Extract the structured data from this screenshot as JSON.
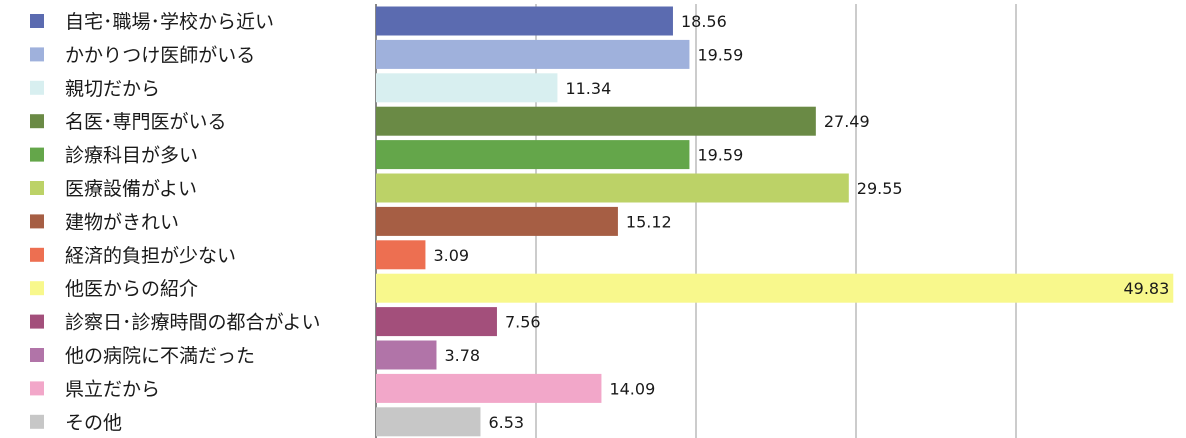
{
  "chart_data": {
    "type": "bar",
    "orientation": "horizontal",
    "categories": [
      "自宅･職場･学校から近い",
      "かかりつけ医師がいる",
      "親切だから",
      "名医･専門医がいる",
      "診療科目が多い",
      "医療設備がよい",
      "建物がきれい",
      "経済的負担が少ない",
      "他医からの紹介",
      "診察日･診療時間の都合がよい",
      "他の病院に不満だった",
      "県立だから",
      "その他"
    ],
    "values": [
      18.56,
      19.59,
      11.34,
      27.49,
      19.59,
      29.55,
      15.12,
      3.09,
      49.83,
      7.56,
      3.78,
      14.09,
      6.53
    ],
    "value_labels": [
      "18.56",
      "19.59",
      "11.34",
      "27.49",
      "19.59",
      "29.55",
      "15.12",
      "3.09",
      "49.83",
      "7.56",
      "3.78",
      "14.09",
      "6.53"
    ],
    "colors": [
      "#5b6bb0",
      "#9fb1dc",
      "#d8eff0",
      "#6a8a45",
      "#64a64a",
      "#bcd267",
      "#a65e44",
      "#ed6f51",
      "#f8f88c",
      "#a34f7b",
      "#b174a8",
      "#f2a7c9",
      "#c7c7c7"
    ],
    "xlim": [
      0,
      50
    ],
    "grid": true,
    "legend": "left",
    "title": "",
    "xlabel": "",
    "ylabel": ""
  }
}
